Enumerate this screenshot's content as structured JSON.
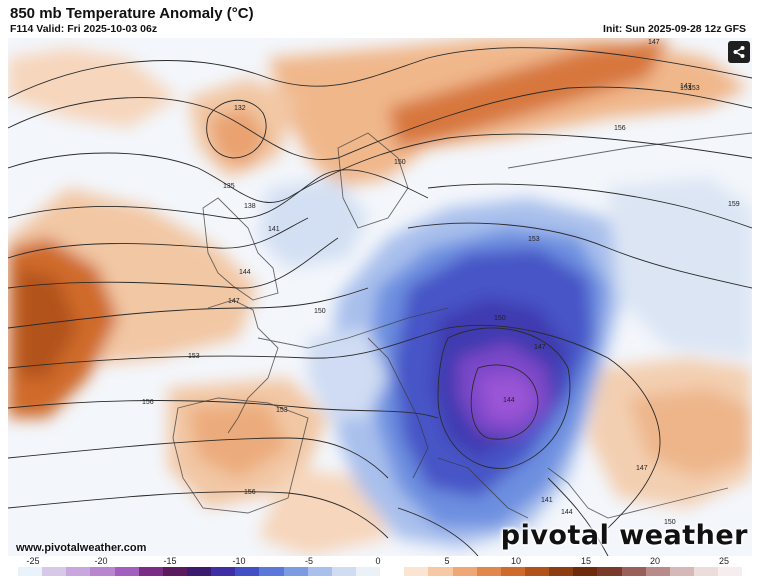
{
  "header": {
    "title": "850 mb Temperature Anomaly (°C)",
    "valid": "F114 Valid: Fri 2025-10-03 06z",
    "init": "Init: Sun 2025-09-28 12z GFS"
  },
  "map": {
    "contour_labels": [
      "147",
      "153",
      "132",
      "135",
      "138",
      "141",
      "144",
      "147",
      "150",
      "153",
      "156",
      "150",
      "153",
      "156",
      "159",
      "150",
      "147",
      "144",
      "153",
      "147",
      "141",
      "144",
      "150",
      "156",
      "147",
      "153"
    ]
  },
  "footer": {
    "url": "www.pivotalweather.com",
    "brand": "pivotal weather"
  },
  "colorbar": {
    "ticks": [
      "-25",
      "-20",
      "-15",
      "-10",
      "-5",
      "0",
      "5",
      "10",
      "15",
      "20",
      "25"
    ],
    "colors": [
      "#e9f3fb",
      "#d7c8ea",
      "#c9a6dd",
      "#b985cf",
      "#a35fbd",
      "#7a2d84",
      "#5c1a5e",
      "#3a1b6e",
      "#3f2fa6",
      "#4150c7",
      "#5a78da",
      "#7d9be3",
      "#a9c0ec",
      "#cfdcf3",
      "#ecf1f8",
      "#ffffff",
      "#fbe4d1",
      "#f6c8a3",
      "#efa775",
      "#e2874c",
      "#cf6a2c",
      "#b2521b",
      "#8e3c12",
      "#6d2b0c",
      "#7a3a2a",
      "#99605a",
      "#b88b88",
      "#d7b8b8",
      "#eddcdc",
      "#f6eeee"
    ]
  },
  "icons": {
    "share": "share-icon"
  }
}
